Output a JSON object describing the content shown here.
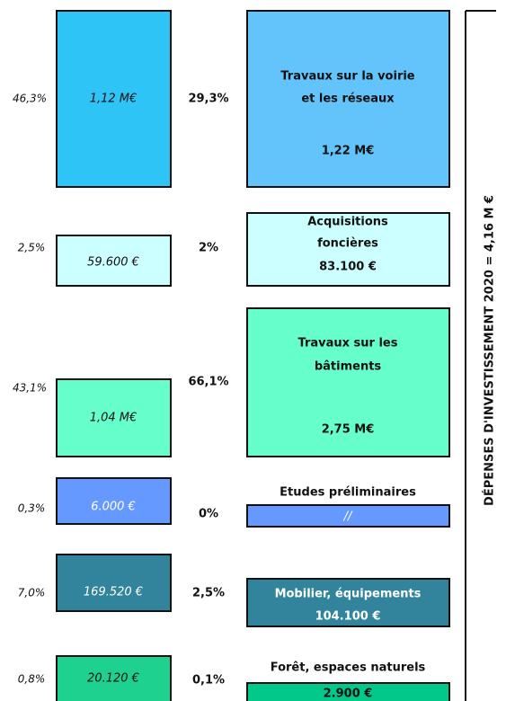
{
  "side_title": "DÉPENSES D'INVESTISSEMENT 2020 = 4,16 M €",
  "rows": [
    {
      "left_pct": "46,3%",
      "left_value": "1,12 M€",
      "mid_pct": "29,3%",
      "right_label": [
        "Travaux sur la voirie",
        "et les réseaux"
      ],
      "right_value": "1,22 M€"
    },
    {
      "left_pct": "2,5%",
      "left_value": "59.600 €",
      "mid_pct": "2%",
      "right_label": [
        "Acquisitions",
        "foncières"
      ],
      "right_value": "83.100 €"
    },
    {
      "left_pct": "43,1%",
      "left_value": "1,04 M€",
      "mid_pct": "66,1%",
      "right_label": [
        "Travaux sur les",
        "bâtiments"
      ],
      "right_value": "2,75 M€"
    },
    {
      "left_pct": "0,3%",
      "left_value": "6.000 €",
      "mid_pct": "0%",
      "right_label": [
        "Etudes préliminaires"
      ],
      "right_value": "//"
    },
    {
      "left_pct": "7,0%",
      "left_value": "169.520 €",
      "mid_pct": "2,5%",
      "right_label": [
        "Mobilier, équipements"
      ],
      "right_value": "104.100 €"
    },
    {
      "left_pct": "0,8%",
      "left_value": "20.120 €",
      "mid_pct": "0,1%",
      "right_label": [
        "Forêt, espaces naturels"
      ],
      "right_value": "2.900 €"
    }
  ]
}
